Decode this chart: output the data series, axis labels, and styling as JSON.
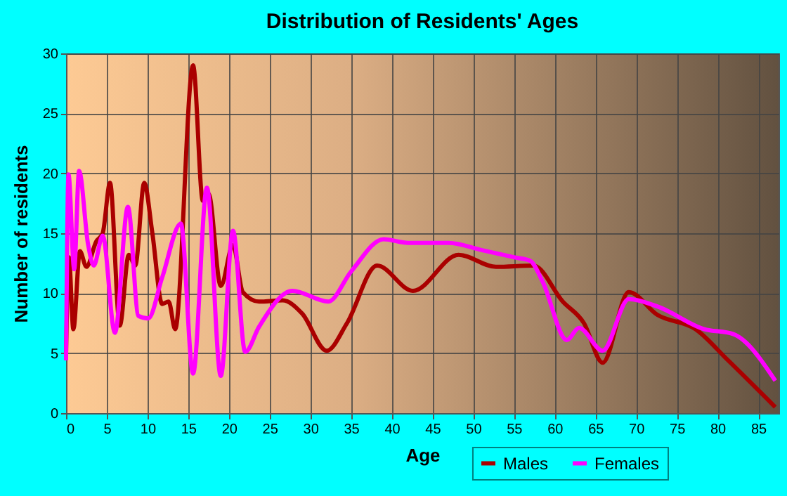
{
  "chart_data": {
    "type": "line",
    "title": "Distribution of Residents' Ages",
    "xlabel": "Age",
    "ylabel": "Number of residents",
    "xlim": [
      0,
      87.5
    ],
    "xticks": [
      0,
      5,
      10,
      15,
      20,
      25,
      30,
      35,
      40,
      45,
      50,
      55,
      60,
      65,
      70,
      75,
      80,
      85
    ],
    "ylim": [
      0,
      30
    ],
    "yticks": [
      0,
      5,
      10,
      15,
      20,
      25,
      30
    ],
    "grid": true,
    "legend": "bottom right",
    "line_style": "solid",
    "marker": "none",
    "series": [
      {
        "name": "Males",
        "color": "#aa0000",
        "x": [
          0,
          0.35,
          0.9,
          1.7,
          2.5,
          3.7,
          4.5,
          5.4,
          6.6,
          7.7,
          8.5,
          9.6,
          10.6,
          11.8,
          12.6,
          13.4,
          15.6,
          16.8,
          17.5,
          19,
          20.5,
          21.7,
          23.7,
          26.6,
          29,
          32,
          34.5,
          38.2,
          42.6,
          48.2,
          52.8,
          57.4,
          61,
          63.6,
          65.9,
          69.1,
          72.6,
          77.3,
          81.3,
          87.1
        ],
        "values": [
          5,
          13,
          7,
          13.5,
          12.2,
          14.3,
          15,
          19.2,
          7.3,
          13.2,
          12.3,
          19.2,
          15,
          9.1,
          9.3,
          7,
          29,
          17.7,
          18.3,
          10.6,
          14,
          10.1,
          9.3,
          9.4,
          8.3,
          5.2,
          7.5,
          12.3,
          10.2,
          13.2,
          12.2,
          12.3,
          9.3,
          7.5,
          4.2,
          10.1,
          8.2,
          7,
          4.4,
          0.5
        ]
      },
      {
        "name": "Females",
        "color": "#ff00ff",
        "x": [
          0,
          0.3,
          1,
          1.6,
          2.7,
          3.4,
          4.5,
          6,
          7.6,
          8.9,
          10.1,
          11.8,
          14.1,
          15.6,
          17.3,
          19,
          20.5,
          22,
          23.7,
          27.8,
          32.2,
          35,
          39,
          42,
          47,
          51,
          55,
          57,
          58.5,
          61.5,
          63,
          65.9,
          69.1,
          72.6,
          78.4,
          81.9,
          87.1
        ],
        "values": [
          4.4,
          19.9,
          12,
          20.2,
          14.1,
          12.3,
          14.8,
          6.7,
          17.2,
          8.1,
          7.9,
          11.3,
          15.8,
          3.3,
          18.8,
          3.1,
          15.2,
          5.1,
          7.2,
          10.2,
          9.3,
          11.8,
          14.5,
          14.2,
          14.2,
          13.6,
          13,
          12.7,
          11,
          6.1,
          7.1,
          5.2,
          9.5,
          8.9,
          7,
          6.6,
          2.7
        ]
      }
    ]
  }
}
